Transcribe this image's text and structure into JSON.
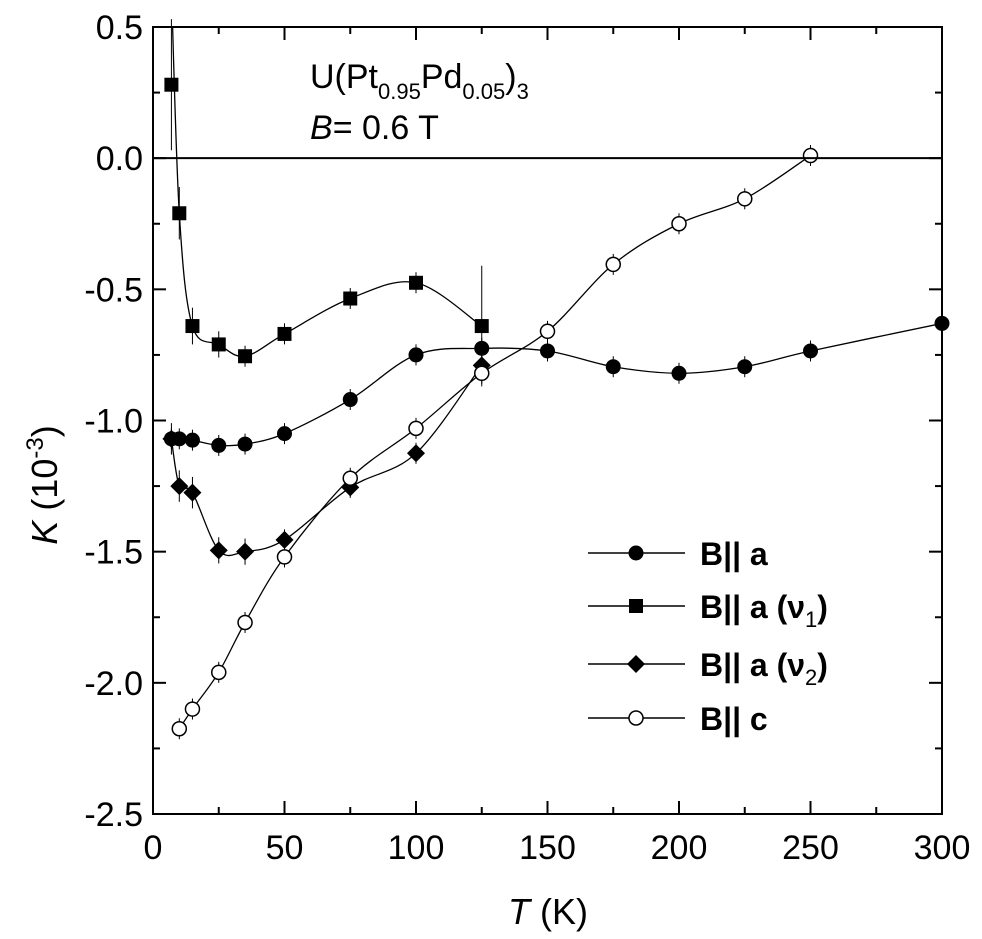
{
  "chart_data": {
    "type": "scatter",
    "title": "",
    "annotation": {
      "compound_prefix": "U(Pt",
      "sub1": "0.95",
      "mid": "Pd",
      "sub2": "0.05",
      "close": ")",
      "sub3": "3",
      "field_symbol": "B",
      "field_value": "= 0.6 T"
    },
    "xlabel": {
      "symbol": "T",
      "unit": " (K)"
    },
    "ylabel": {
      "symbol": "K",
      "unit_open": " (10",
      "unit_exp": "-3",
      "unit_close": ")"
    },
    "xlim": [
      0,
      300
    ],
    "ylim": [
      -2.5,
      0.5
    ],
    "x_ticks": [
      0,
      50,
      100,
      150,
      200,
      250,
      300
    ],
    "x_tick_labels": [
      "0",
      "50",
      "100",
      "150",
      "200",
      "250",
      "300"
    ],
    "y_ticks": [
      0.5,
      0.0,
      -0.5,
      -1.0,
      -1.5,
      -2.0,
      -2.5
    ],
    "y_tick_labels": [
      "0.5",
      "0.0",
      "-0.5",
      "-1.0",
      "-1.5",
      "-2.0",
      "-2.5"
    ],
    "reference_line_y": 0,
    "grid": false,
    "legend_position": "bottom-right",
    "series": [
      {
        "name": "B|| a",
        "marker": "filled-circle",
        "x": [
          7,
          10,
          15,
          25,
          35,
          50,
          75,
          100,
          125,
          150,
          175,
          200,
          225,
          250,
          300
        ],
        "y": [
          -1.07,
          -1.07,
          -1.075,
          -1.095,
          -1.09,
          -1.05,
          -0.92,
          -0.75,
          -0.725,
          -0.735,
          -0.795,
          -0.82,
          -0.795,
          -0.735,
          -0.63
        ],
        "yerr": [
          0.04,
          0.04,
          0.04,
          0.04,
          0.04,
          0.04,
          0.04,
          0.04,
          0.04,
          0.04,
          0.04,
          0.04,
          0.04,
          0.04,
          0.04
        ]
      },
      {
        "name": "B|| a (ν1)",
        "legend_base": "B|| a (ν",
        "legend_sub": "1",
        "marker": "filled-square",
        "x": [
          7,
          10,
          15,
          25,
          35,
          50,
          75,
          100,
          125
        ],
        "y": [
          0.28,
          -0.21,
          -0.64,
          -0.71,
          -0.755,
          -0.67,
          -0.535,
          -0.475,
          -0.64
        ],
        "yerr": [
          0.25,
          0.1,
          0.07,
          0.05,
          0.04,
          0.04,
          0.04,
          0.04,
          0.23
        ]
      },
      {
        "name": "B|| a (ν2)",
        "legend_base": "B|| a (ν",
        "legend_sub": "2",
        "marker": "filled-diamond",
        "x": [
          7,
          10,
          15,
          25,
          35,
          50,
          75,
          100,
          125
        ],
        "y": [
          -1.07,
          -1.25,
          -1.275,
          -1.495,
          -1.5,
          -1.455,
          -1.255,
          -1.125,
          -0.79
        ],
        "yerr": [
          0.06,
          0.06,
          0.06,
          0.05,
          0.05,
          0.04,
          0.04,
          0.04,
          0.04
        ]
      },
      {
        "name": "B|| c",
        "marker": "open-circle",
        "x": [
          10,
          15,
          25,
          35,
          50,
          75,
          100,
          125,
          150,
          175,
          200,
          225,
          250
        ],
        "y": [
          -2.175,
          -2.1,
          -1.96,
          -1.77,
          -1.52,
          -1.22,
          -1.03,
          -0.82,
          -0.66,
          -0.405,
          -0.25,
          -0.155,
          0.01
        ],
        "yerr": [
          0.04,
          0.04,
          0.04,
          0.04,
          0.04,
          0.04,
          0.04,
          0.04,
          0.04,
          0.04,
          0.04,
          0.04,
          0.04
        ]
      }
    ]
  }
}
